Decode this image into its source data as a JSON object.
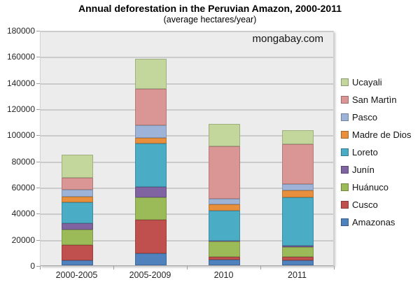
{
  "header": {
    "title": "Annual deforestation in the Peruvian Amazon, 2000-2011",
    "subtitle": "(average hectares/year)"
  },
  "watermark": "mongabay.com",
  "chart_data": {
    "type": "bar",
    "stacked": true,
    "title": "Annual deforestation in the Peruvian Amazon, 2000-2011",
    "subtitle": "(average hectares/year)",
    "xlabel": "",
    "ylabel": "",
    "categories": [
      "2000-2005",
      "2005-2009",
      "2010",
      "2011"
    ],
    "series": [
      {
        "name": "Amazonas",
        "color": "#4f81bd",
        "values": [
          3600,
          9300,
          4100,
          3900
        ]
      },
      {
        "name": "Cusco",
        "color": "#c0504d",
        "values": [
          12100,
          25500,
          2100,
          2400
        ]
      },
      {
        "name": "Huánuco",
        "color": "#9bbb59",
        "values": [
          11600,
          17000,
          11900,
          7500
        ]
      },
      {
        "name": "Junín",
        "color": "#8064a2",
        "values": [
          4800,
          8400,
          400,
          1400
        ]
      },
      {
        "name": "Loreto",
        "color": "#4bacc6",
        "values": [
          16100,
          33000,
          23500,
          36600
        ]
      },
      {
        "name": "Madre de Dios",
        "color": "#e78f3c",
        "values": [
          4500,
          4100,
          4500,
          5700
        ]
      },
      {
        "name": "Pasco",
        "color": "#9db4d8",
        "values": [
          5000,
          9800,
          4500,
          4500
        ]
      },
      {
        "name": "San Martìn",
        "color": "#d99694",
        "values": [
          9300,
          27700,
          40300,
          30800
        ]
      },
      {
        "name": "Ucayali",
        "color": "#c3d69b",
        "values": [
          17500,
          23200,
          16800,
          10400
        ]
      }
    ],
    "totals": [
      84500,
      158000,
      108100,
      103200
    ],
    "ylim": [
      0,
      180000
    ],
    "ytick_step": 20000,
    "grid": true,
    "legend_position": "right",
    "legend_order": "reverse-of-stack",
    "plot_background": "#ececec",
    "gridline_color": "#cbcbcb"
  }
}
